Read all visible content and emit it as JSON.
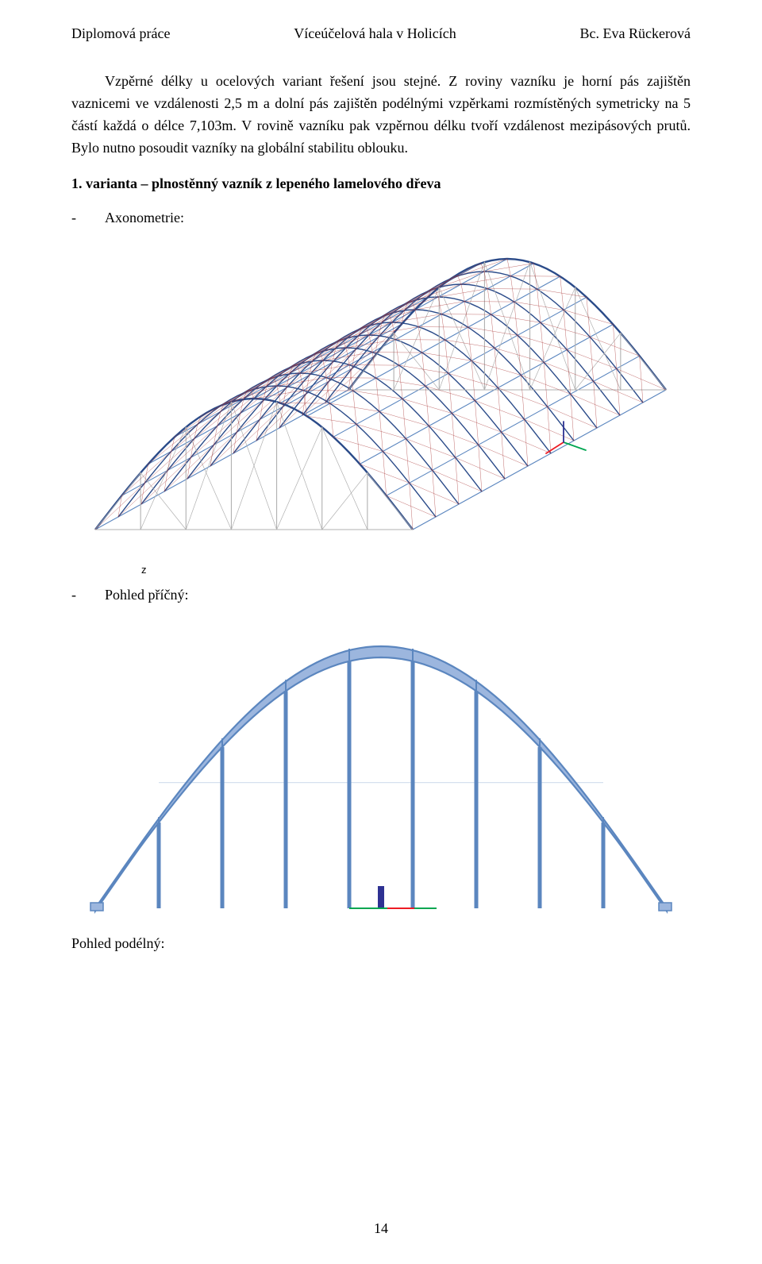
{
  "header": {
    "left": "Diplomová práce",
    "center": "Víceúčelová hala v Holicích",
    "right": "Bc. Eva Rückerová"
  },
  "paragraphs": {
    "p1": "Vzpěrné délky u ocelových variant řešení jsou stejné. Z roviny vazníku je horní pás zajištěn vaznicemi ve vzdálenosti 2,5 m a dolní pás zajištěn podélnými vzpěrkami rozmístěných symetricky na 5 částí každá o délce 7,103m. V rovině vazníku pak vzpěrnou délku tvoří vzdálenost mezipásových prutů. Bylo nutno posoudit vazníky na globální stabilitu oblouku."
  },
  "heading1": "1. varianta – plnostěnný vazník z lepeného lamelového dřeva",
  "labels": {
    "axonometry": "Axonometrie:",
    "cross_view": "Pohled příčný:",
    "longitudinal_view": "Pohled podélný:"
  },
  "z_marker": "z",
  "page_number": "14",
  "axo_diagram": {
    "type": "3d-structure-isometric",
    "description": "arched hall axonometric wireframe",
    "purlin_color": "#5b86bf",
    "arch_color": "#2b4b89",
    "bracing_color": "#a83232",
    "end_wall_color": "#b0b0b0",
    "axis_x_color": "#00a651",
    "axis_y_color": "#ed1c24",
    "axis_z_color": "#2e3192",
    "num_arches": 12,
    "num_purlins": 13,
    "num_bracing_panels": 11,
    "background_color": "#ffffff"
  },
  "cross_diagram": {
    "type": "elevation-arc",
    "description": "cross-section single arch with vertical purlins",
    "arch_outer_color": "#5b86bf",
    "arch_fill_color": "#9cb6de",
    "column_color": "#5b86bf",
    "ground_marker_color": "#2e3192",
    "ground_line_color": "#00a651",
    "num_columns": 8,
    "radial_marks": 8,
    "background_color": "#ffffff"
  }
}
